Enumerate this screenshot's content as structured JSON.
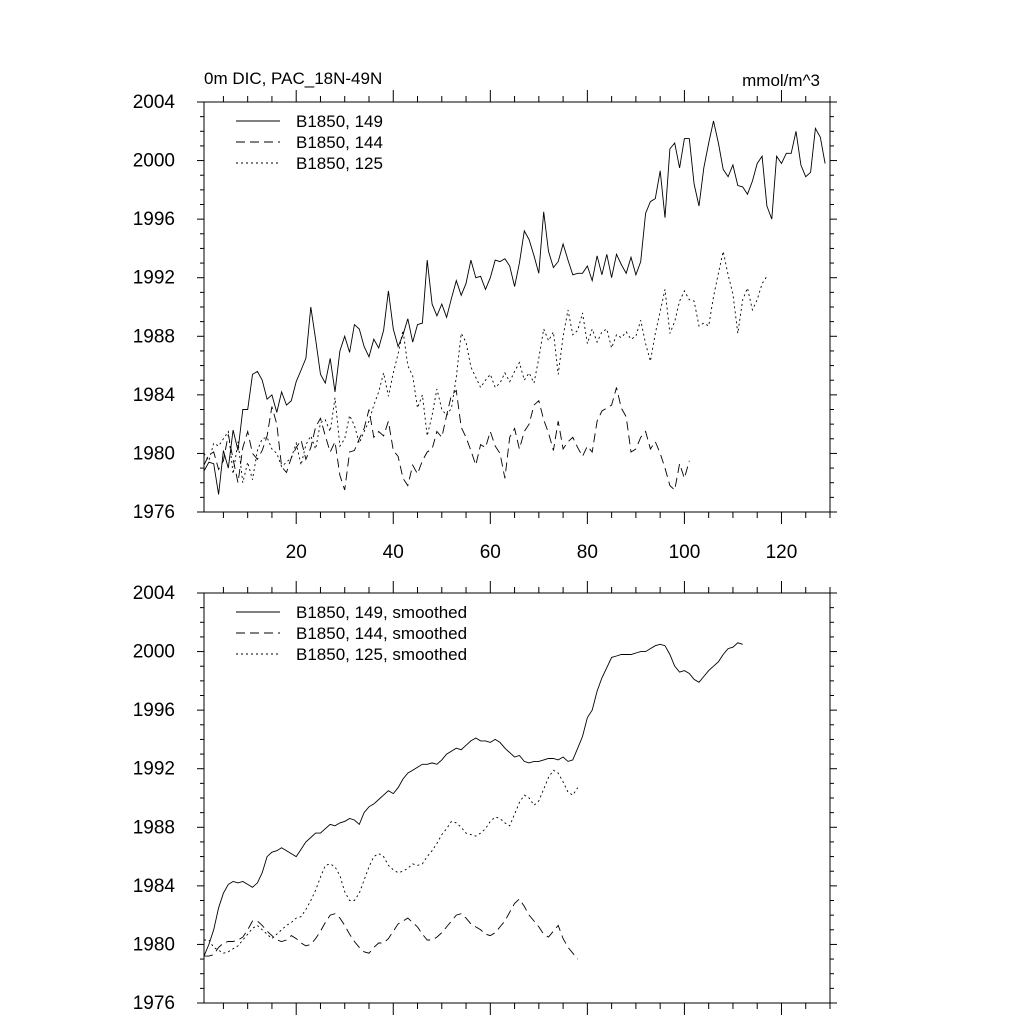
{
  "header": {
    "title": "0m DIC, PAC_18N-49N",
    "units": "mmol/m^3"
  },
  "chart_data": [
    {
      "type": "line",
      "xlim": [
        1,
        130
      ],
      "ylim": [
        1976,
        2004
      ],
      "xticks": [
        20,
        40,
        60,
        80,
        100,
        120
      ],
      "xtick_labels": [
        "20",
        "40",
        "60",
        "80",
        "100",
        "120"
      ],
      "yticks": [
        1976,
        1980,
        1984,
        1988,
        1992,
        1996,
        2000,
        2004
      ],
      "ytick_labels": [
        "1976",
        "1980",
        "1984",
        "1988",
        "1992",
        "1996",
        "2000",
        "2004"
      ],
      "grid": false,
      "legend_position": "top-left",
      "series": [
        {
          "name": "B1850, 149",
          "style": "solid",
          "x_start": 1,
          "values": [
            1978.8,
            1979.4,
            1979.3,
            1977.2,
            1980.2,
            1979.0,
            1981.6,
            1980.2,
            1983.0,
            1983.0,
            1985.4,
            1985.6,
            1985.0,
            1983.7,
            1984.0,
            1982.8,
            1984.2,
            1983.3,
            1983.6,
            1984.9,
            1985.7,
            1986.5,
            1990.0,
            1987.8,
            1985.4,
            1984.8,
            1986.5,
            1984.2,
            1987.0,
            1988.0,
            1986.9,
            1988.8,
            1988.5,
            1987.3,
            1986.6,
            1987.8,
            1987.2,
            1988.4,
            1991.1,
            1988.5,
            1987.3,
            1988.1,
            1989.2,
            1987.6,
            1988.8,
            1988.9,
            1993.2,
            1990.2,
            1989.4,
            1990.2,
            1989.3,
            1990.6,
            1991.8,
            1990.8,
            1991.6,
            1993.2,
            1992.0,
            1992.1,
            1991.2,
            1992.0,
            1993.2,
            1993.1,
            1993.3,
            1992.8,
            1991.4,
            1993.0,
            1995.2,
            1994.6,
            1993.5,
            1992.3,
            1996.5,
            1993.8,
            1992.7,
            1993.1,
            1994.3,
            1993.2,
            1992.2,
            1992.3,
            1992.3,
            1992.8,
            1991.8,
            1993.5,
            1992.2,
            1993.6,
            1992.0,
            1993.6,
            1992.9,
            1992.3,
            1993.4,
            1992.2,
            1993.1,
            1996.4,
            1997.2,
            1997.4,
            1999.3,
            1996.1,
            2000.8,
            2001.2,
            1999.5,
            2001.5,
            2001.5,
            1998.4,
            1996.9,
            1999.5,
            2001.2,
            2002.7,
            2001.2,
            1999.4,
            1998.9,
            1999.7,
            1998.3,
            1998.2,
            1997.7,
            1998.6,
            1999.8,
            2000.3,
            1996.9,
            1996.0,
            2000.3,
            1999.8,
            2000.5,
            2000.5,
            2002.0,
            1999.7,
            1998.9,
            1999.2,
            2002.2,
            2001.6,
            1999.8
          ]
        },
        {
          "name": "B1850, 144",
          "style": "dash",
          "x_start": 1,
          "values": [
            1979.2,
            1979.9,
            1980.1,
            1978.9,
            1979.5,
            1981.3,
            1979.6,
            1978.0,
            1980.4,
            1981.5,
            1980.0,
            1979.6,
            1980.2,
            1981.2,
            1983.2,
            1982.0,
            1979.1,
            1978.7,
            1979.7,
            1980.4,
            1980.9,
            1979.6,
            1980.4,
            1981.8,
            1982.4,
            1981.2,
            1980.1,
            1980.8,
            1978.5,
            1977.5,
            1980.1,
            1980.2,
            1981.0,
            1981.7,
            1983.0,
            1981.1,
            1981.5,
            1981.2,
            1982.2,
            1980.2,
            1979.8,
            1978.3,
            1977.8,
            1979.2,
            1978.6,
            1979.5,
            1980.1,
            1980.3,
            1981.5,
            1981.1,
            1982.6,
            1984.0,
            1984.3,
            1981.8,
            1981.1,
            1980.2,
            1979.2,
            1980.6,
            1980.4,
            1981.5,
            1980.5,
            1980.0,
            1978.3,
            1981.1,
            1981.7,
            1980.3,
            1981.5,
            1982.0,
            1983.3,
            1983.6,
            1982.3,
            1981.4,
            1980.2,
            1982.2,
            1980.3,
            1980.8,
            1981.1,
            1980.4,
            1979.8,
            1980.5,
            1980.1,
            1982.2,
            1982.9,
            1983.1,
            1983.3,
            1984.5,
            1983.1,
            1982.5,
            1980.1,
            1980.3,
            1981.1,
            1981.5,
            1980.3,
            1980.8,
            1980.0,
            1979.0,
            1977.8,
            1977.5,
            1979.3,
            1978.3,
            1979.5
          ]
        },
        {
          "name": "B1850, 125",
          "style": "dot",
          "x_start": 1,
          "values": [
            1980.0,
            1979.5,
            1980.7,
            1980.5,
            1981.0,
            1981.5,
            1978.6,
            1980.8,
            1978.0,
            1979.4,
            1978.2,
            1980.2,
            1981.0,
            1981.1,
            1980.3,
            1980.0,
            1979.1,
            1979.4,
            1979.7,
            1980.7,
            1979.2,
            1980.6,
            1981.2,
            1980.3,
            1982.1,
            1982.3,
            1981.5,
            1983.8,
            1980.5,
            1981.0,
            1982.6,
            1981.9,
            1980.7,
            1981.5,
            1982.2,
            1983.3,
            1984.2,
            1985.5,
            1983.9,
            1985.5,
            1986.8,
            1988.4,
            1986.0,
            1985.3,
            1983.1,
            1984.0,
            1981.2,
            1982.6,
            1984.4,
            1983.0,
            1982.6,
            1983.1,
            1985.2,
            1988.2,
            1987.6,
            1985.9,
            1985.2,
            1984.5,
            1985.0,
            1985.4,
            1984.5,
            1984.8,
            1985.5,
            1984.9,
            1985.6,
            1986.2,
            1985.0,
            1985.5,
            1984.8,
            1986.5,
            1988.5,
            1987.7,
            1988.3,
            1985.4,
            1988.0,
            1989.8,
            1988.1,
            1988.4,
            1989.6,
            1987.5,
            1988.5,
            1987.6,
            1988.3,
            1988.5,
            1987.2,
            1988.1,
            1987.9,
            1988.3,
            1987.8,
            1988.0,
            1989.1,
            1987.5,
            1986.3,
            1988.2,
            1989.7,
            1991.2,
            1988.2,
            1989.0,
            1990.4,
            1991.1,
            1990.5,
            1990.4,
            1988.7,
            1988.9,
            1988.7,
            1990.7,
            1992.3,
            1993.8,
            1992.2,
            1990.9,
            1988.2,
            1990.5,
            1991.3,
            1989.8,
            1990.5,
            1991.6,
            1992.1
          ]
        }
      ]
    },
    {
      "type": "line",
      "xlim": [
        1,
        130
      ],
      "ylim": [
        1976,
        2004
      ],
      "yticks": [
        1976,
        1980,
        1984,
        1988,
        1992,
        1996,
        2000,
        2004
      ],
      "ytick_labels": [
        "1976",
        "1980",
        "1984",
        "1988",
        "1992",
        "1996",
        "2000",
        "2004"
      ],
      "xticks": [
        20,
        40,
        60,
        80,
        100,
        120
      ],
      "xtick_labels": [],
      "grid": false,
      "legend_position": "top-left",
      "series": [
        {
          "name": "B1850, 149, smoothed",
          "style": "solid",
          "x_start": 1,
          "values": [
            1979.2,
            1980.0,
            1981.0,
            1982.5,
            1983.5,
            1984.1,
            1984.3,
            1984.2,
            1984.3,
            1984.1,
            1983.9,
            1984.2,
            1984.9,
            1986.0,
            1986.3,
            1986.4,
            1986.6,
            1986.4,
            1986.2,
            1986.0,
            1986.5,
            1987.0,
            1987.3,
            1987.6,
            1987.6,
            1987.9,
            1988.2,
            1988.1,
            1988.3,
            1988.4,
            1988.6,
            1988.5,
            1988.2,
            1989.0,
            1989.4,
            1989.6,
            1989.9,
            1990.2,
            1990.5,
            1990.3,
            1990.7,
            1991.3,
            1991.7,
            1991.9,
            1992.1,
            1992.3,
            1992.3,
            1992.4,
            1992.3,
            1992.6,
            1993.0,
            1993.2,
            1993.4,
            1993.3,
            1993.6,
            1993.9,
            1994.1,
            1993.9,
            1993.9,
            1993.8,
            1994.0,
            1993.8,
            1993.4,
            1993.1,
            1992.8,
            1992.9,
            1992.5,
            1992.4,
            1992.5,
            1992.5,
            1992.6,
            1992.7,
            1992.7,
            1992.6,
            1992.8,
            1992.5,
            1992.6,
            1993.4,
            1994.2,
            1995.5,
            1996.0,
            1997.3,
            1998.2,
            1998.9,
            1999.6,
            1999.7,
            1999.8,
            1999.8,
            1999.8,
            1999.9,
            2000.0,
            2000.0,
            2000.2,
            2000.4,
            2000.5,
            2000.4,
            1999.8,
            1999.0,
            1998.6,
            1998.7,
            1998.5,
            1998.1,
            1997.9,
            1998.3,
            1998.7,
            1999.0,
            1999.3,
            1999.8,
            2000.2,
            2000.3,
            2000.6,
            2000.5
          ]
        },
        {
          "name": "B1850, 144, smoothed",
          "style": "dash",
          "x_start": 1,
          "values": [
            1979.2,
            1979.2,
            1979.3,
            1979.8,
            1980.1,
            1980.2,
            1980.2,
            1980.3,
            1980.5,
            1981.0,
            1981.6,
            1981.6,
            1981.3,
            1980.9,
            1980.6,
            1980.3,
            1980.2,
            1980.3,
            1980.6,
            1980.4,
            1980.1,
            1979.9,
            1980.0,
            1980.4,
            1980.9,
            1981.5,
            1982.0,
            1982.1,
            1981.8,
            1981.3,
            1980.7,
            1980.2,
            1979.8,
            1979.5,
            1979.4,
            1979.8,
            1980.1,
            1980.1,
            1980.4,
            1980.9,
            1981.4,
            1981.6,
            1981.8,
            1981.5,
            1981.2,
            1980.7,
            1980.3,
            1980.3,
            1980.5,
            1980.8,
            1981.2,
            1981.6,
            1982.0,
            1982.1,
            1981.8,
            1981.4,
            1981.2,
            1981.0,
            1980.7,
            1980.6,
            1980.8,
            1981.2,
            1981.6,
            1982.2,
            1982.8,
            1983.1,
            1982.6,
            1982.0,
            1981.6,
            1981.2,
            1980.7,
            1980.5,
            1980.9,
            1981.3,
            1980.4,
            1979.8,
            1979.4,
            1979.0
          ]
        },
        {
          "name": "B1850, 125, smoothed",
          "style": "dot",
          "x_start": 1,
          "values": [
            1980.3,
            1980.3,
            1979.8,
            1979.6,
            1979.4,
            1979.5,
            1979.7,
            1979.9,
            1980.3,
            1980.7,
            1981.1,
            1981.3,
            1981.0,
            1980.7,
            1980.4,
            1980.7,
            1981.0,
            1981.3,
            1981.5,
            1981.8,
            1981.9,
            1982.4,
            1983.0,
            1983.7,
            1984.6,
            1985.4,
            1985.5,
            1985.3,
            1984.7,
            1983.6,
            1983.0,
            1983.0,
            1983.5,
            1984.4,
            1985.3,
            1986.0,
            1986.2,
            1986.0,
            1985.4,
            1985.1,
            1984.9,
            1985.0,
            1985.2,
            1985.5,
            1985.4,
            1985.5,
            1986.0,
            1986.4,
            1986.9,
            1987.5,
            1987.9,
            1988.4,
            1988.3,
            1988.0,
            1987.6,
            1987.5,
            1987.4,
            1987.6,
            1987.9,
            1988.4,
            1988.7,
            1988.6,
            1988.3,
            1988.1,
            1988.9,
            1989.7,
            1990.2,
            1990.0,
            1989.5,
            1989.8,
            1990.6,
            1991.4,
            1991.9,
            1991.7,
            1991.1,
            1990.4,
            1990.2,
            1990.7
          ]
        }
      ]
    }
  ]
}
